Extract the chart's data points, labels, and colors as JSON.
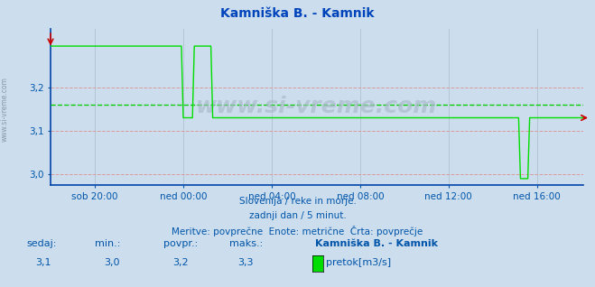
{
  "title": "Kamniška B. - Kamnik",
  "bg_color": "#ccdded",
  "plot_bg_color": "#ccdded",
  "line_color": "#00dd00",
  "avg_line_color": "#00cc00",
  "avg_value": 3.16,
  "ymin": 2.975,
  "ymax": 3.335,
  "yticks": [
    3.0,
    3.1,
    3.2
  ],
  "ytick_labels": [
    "3,0",
    "3,1",
    "3,2"
  ],
  "xtick_labels": [
    "sob 20:00",
    "ned 00:00",
    "ned 04:00",
    "ned 08:00",
    "ned 12:00",
    "ned 16:00"
  ],
  "watermark": "www.si-vreme.com",
  "subtitle1": "Slovenija / reke in morje.",
  "subtitle2": "zadnji dan / 5 minut.",
  "subtitle3": "Meritve: povprečne  Enote: metrične  Črta: povprečje",
  "footer_label1": "sedaj:",
  "footer_label2": "min.:",
  "footer_label3": "povpr.:",
  "footer_label4": "maks.:",
  "footer_val1": "3,1",
  "footer_val2": "3,0",
  "footer_val3": "3,2",
  "footer_val4": "3,3",
  "footer_series": "Kamniška B. - Kamnik",
  "footer_unit": "pretok[m3/s]",
  "side_text": "www.si-vreme.com",
  "text_color": "#0055aa",
  "title_color": "#0044bb",
  "red_color": "#cc0000",
  "grid_h_color": "#dd9999",
  "grid_v_color": "#aabbcc"
}
